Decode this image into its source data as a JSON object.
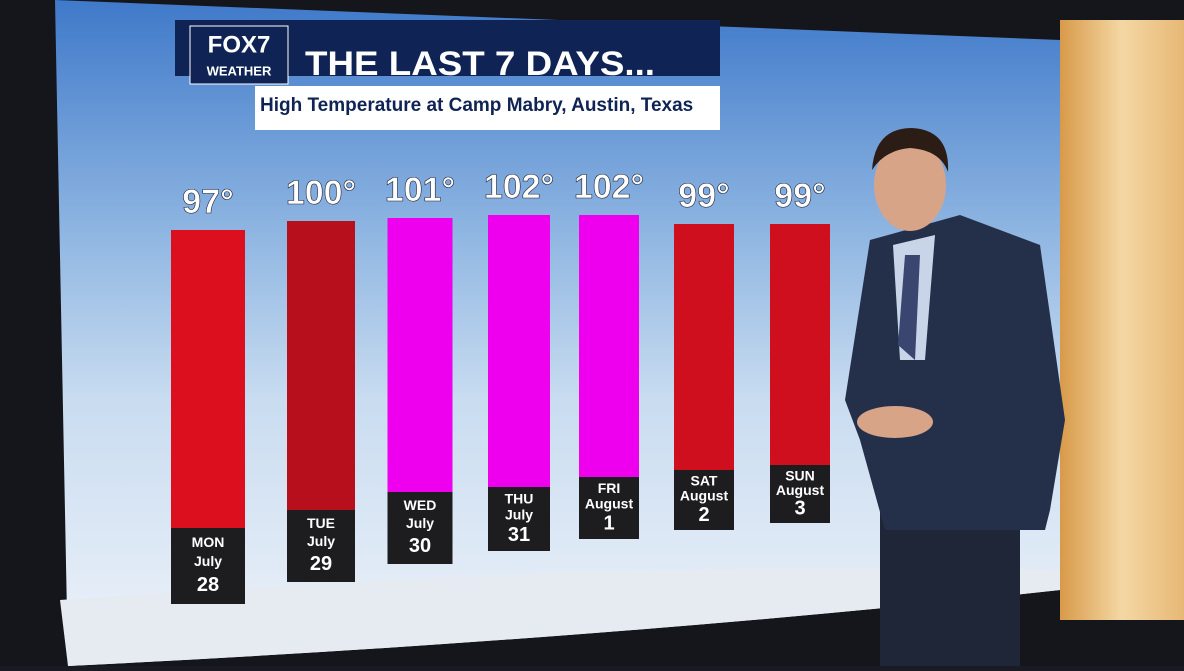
{
  "chart_data": {
    "type": "bar",
    "logo": {
      "name": "FOX7",
      "sub": "WEATHER"
    },
    "title": "THE LAST 7 DAYS...",
    "subtitle": "High Temperature at Camp Mabry, Austin, Texas",
    "categories": [
      {
        "day": "MON",
        "month": "July",
        "date": "28"
      },
      {
        "day": "TUE",
        "month": "July",
        "date": "29"
      },
      {
        "day": "WED",
        "month": "July",
        "date": "30"
      },
      {
        "day": "THU",
        "month": "July",
        "date": "31"
      },
      {
        "day": "FRI",
        "month": "August",
        "date": "1"
      },
      {
        "day": "SAT",
        "month": "August",
        "date": "2"
      },
      {
        "day": "SUN",
        "month": "August",
        "date": "3"
      }
    ],
    "values": [
      97,
      100,
      101,
      102,
      102,
      99,
      99
    ],
    "value_labels": [
      "97°",
      "100°",
      "101°",
      "102°",
      "102°",
      "99°",
      "99°"
    ],
    "colors": [
      "#dc0f1e",
      "#b80f1c",
      "#ee00ee",
      "#ee00ee",
      "#ee00ee",
      "#cf0f1e",
      "#cf0f1e"
    ]
  }
}
